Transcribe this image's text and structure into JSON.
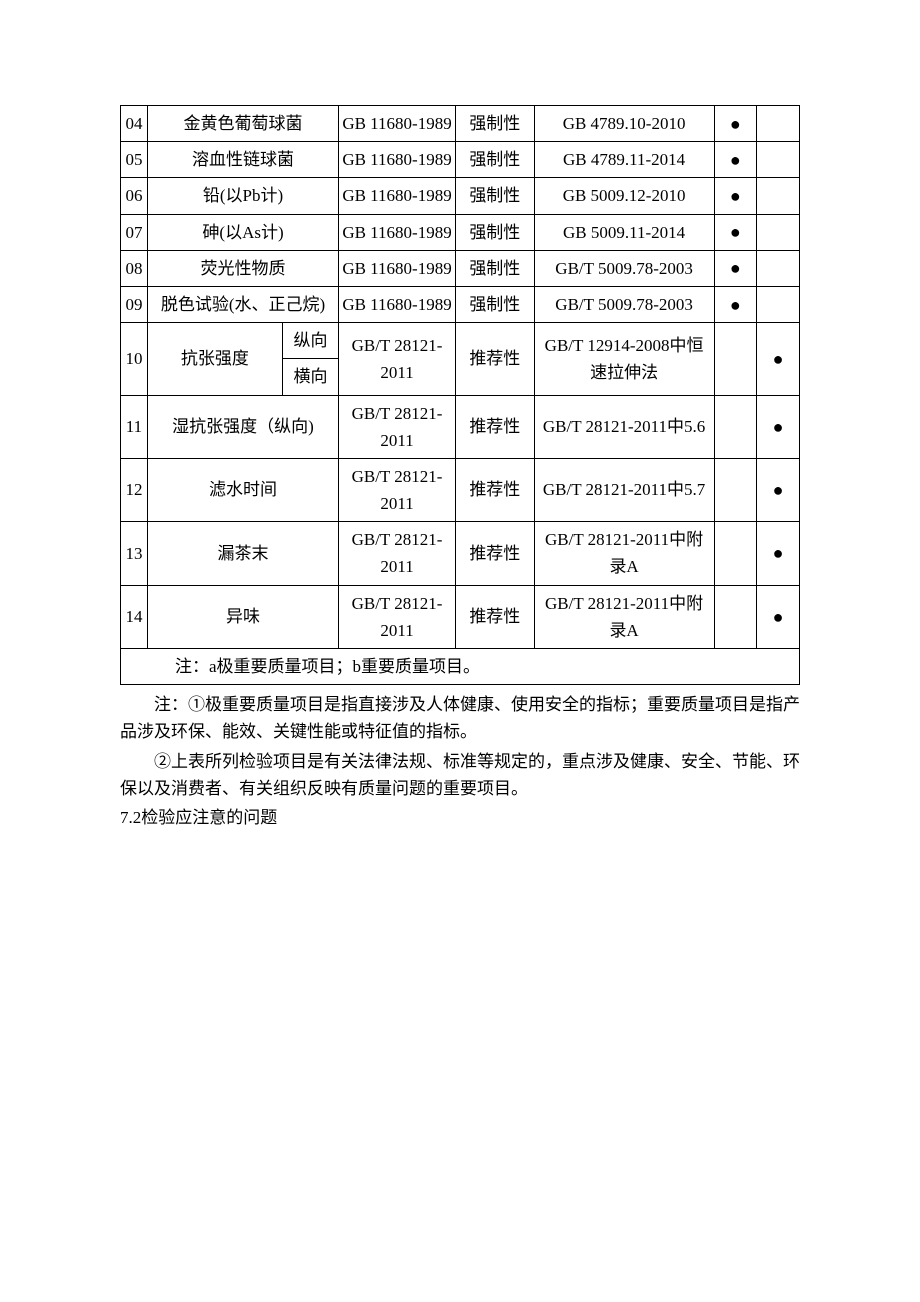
{
  "table": {
    "rows": [
      {
        "idx": "04",
        "name": "金黄色葡萄球菌",
        "sub": null,
        "std": "GB 11680-1989",
        "nature": "强制性",
        "test": "GB 4789.10-2010",
        "a": "●",
        "b": ""
      },
      {
        "idx": "05",
        "name": "溶血性链球菌",
        "sub": null,
        "std": "GB 11680-1989",
        "nature": "强制性",
        "test": "GB 4789.11-2014",
        "a": "●",
        "b": ""
      },
      {
        "idx": "06",
        "name": "铅(以Pb计)",
        "sub": null,
        "std": "GB 11680-1989",
        "nature": "强制性",
        "test": "GB 5009.12-2010",
        "a": "●",
        "b": ""
      },
      {
        "idx": "07",
        "name": "砷(以As计)",
        "sub": null,
        "std": "GB 11680-1989",
        "nature": "强制性",
        "test": "GB 5009.11-2014",
        "a": "●",
        "b": ""
      },
      {
        "idx": "08",
        "name": "荧光性物质",
        "sub": null,
        "std": "GB 11680-1989",
        "nature": "强制性",
        "test": "GB/T 5009.78-2003",
        "a": "●",
        "b": ""
      },
      {
        "idx": "09",
        "name": "脱色试验(水、正己烷)",
        "sub": null,
        "std": "GB 11680-1989",
        "nature": "强制性",
        "test": "GB/T 5009.78-2003",
        "a": "●",
        "b": ""
      },
      {
        "idx": "10",
        "name": "抗张强度",
        "sub": [
          "纵向",
          "横向"
        ],
        "std": "GB/T 28121-2011",
        "nature": "推荐性",
        "test": "GB/T 12914-2008中恒速拉伸法",
        "a": "",
        "b": "●"
      },
      {
        "idx": "11",
        "name": "湿抗张强度（纵向)",
        "sub": null,
        "std": "GB/T 28121-2011",
        "nature": "推荐性",
        "test": "GB/T 28121-2011中5.6",
        "a": "",
        "b": "●"
      },
      {
        "idx": "12",
        "name": "滤水时间",
        "sub": null,
        "std": "GB/T 28121-2011",
        "nature": "推荐性",
        "test": "GB/T 28121-2011中5.7",
        "a": "",
        "b": "●"
      },
      {
        "idx": "13",
        "name": "漏茶末",
        "sub": null,
        "std": "GB/T 28121-2011",
        "nature": "推荐性",
        "test": "GB/T 28121-2011中附录A",
        "a": "",
        "b": "●"
      },
      {
        "idx": "14",
        "name": "异味",
        "sub": null,
        "std": "GB/T 28121-2011",
        "nature": "推荐性",
        "test": "GB/T 28121-2011中附录A",
        "a": "",
        "b": "●"
      }
    ],
    "footnote": "注：a极重要质量项目；b重要质量项目。"
  },
  "notes": {
    "n1": "注：①极重要质量项目是指直接涉及人体健康、使用安全的指标；重要质量项目是指产品涉及环保、能效、关键性能或特征值的指标。",
    "n2": "②上表所列检验项目是有关法律法规、标准等规定的，重点涉及健康、安全、节能、环保以及消费者、有关组织反映有质量问题的重要项目。",
    "n3": "7.2检验应注意的问题"
  }
}
